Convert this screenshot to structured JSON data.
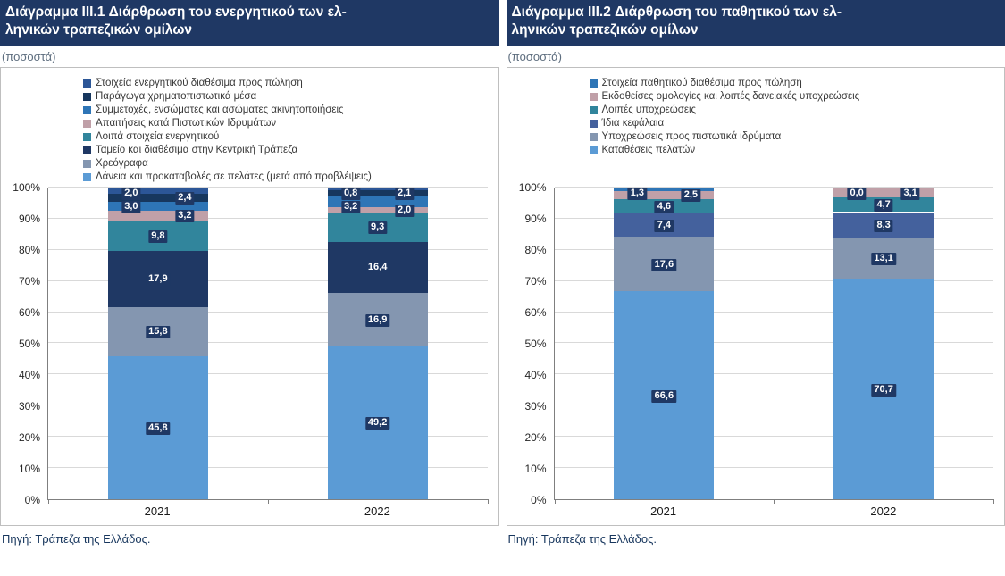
{
  "colors": {
    "title_bar": "#1F3864",
    "value_label_bg": "#1F3864",
    "value_label_text": "#FFFFFF",
    "gridline": "#D9D9D9",
    "axis": "#7F7F7F"
  },
  "chart_data": [
    {
      "type": "bar",
      "stacked": true,
      "title": "Διάγραμμα III.1 Διάρθρωση του ενεργητικού των ελληνικών τραπεζικών ομίλων",
      "title_lines": [
        "Διάγραμμα III.1 Διάρθρωση του ενεργητικού των ελ-",
        "ληνικών τραπεζικών ομίλων"
      ],
      "subtitle": "(ποσοστά)",
      "source": "Πηγή: Τράπεζα της Ελλάδος.",
      "categories": [
        "2021",
        "2022"
      ],
      "ylim": [
        0,
        100
      ],
      "yticks": [
        "0%",
        "10%",
        "20%",
        "30%",
        "40%",
        "50%",
        "60%",
        "70%",
        "80%",
        "90%",
        "100%"
      ],
      "grid": true,
      "legend_position": "top",
      "stack_note": "series listed in legend order, top of stack first",
      "series": [
        {
          "name": "Στοιχεία ενεργητικού διαθέσιμα προς πώληση",
          "color": "#2C5697",
          "values": [
            2.0,
            0.8
          ]
        },
        {
          "name": "Παράγωγα χρηματοπιστωτικά μέσα",
          "color": "#17375E",
          "values": [
            2.4,
            2.1
          ]
        },
        {
          "name": "Συμμετοχές, ενσώματες και ασώματες ακινητοποιήσεις",
          "color": "#2E75B6",
          "values": [
            3.0,
            3.2
          ]
        },
        {
          "name": "Απαιτήσεις κατά Πιστωτικών Ιδρυμάτων",
          "color": "#C0A0A8",
          "values": [
            3.2,
            2.0
          ]
        },
        {
          "name": "Λοιπά στοιχεία ενεργητικού",
          "color": "#31859C",
          "values": [
            9.8,
            9.3
          ]
        },
        {
          "name": "Ταμείο και διαθέσιμα στην Κεντρική Τράπεζα",
          "color": "#1F3864",
          "values": [
            17.9,
            16.4
          ]
        },
        {
          "name": "Χρεόγραφα",
          "color": "#8496B0",
          "values": [
            15.8,
            16.9
          ]
        },
        {
          "name": "Δάνεια και προκαταβολές σε πελάτες (μετά από προβλέψεις)",
          "color": "#5B9BD5",
          "values": [
            45.8,
            49.2
          ]
        }
      ]
    },
    {
      "type": "bar",
      "stacked": true,
      "title": "Διάγραμμα III.2 Διάρθρωση του παθητικού των ελληνικών τραπεζικών ομίλων",
      "title_lines": [
        "Διάγραμμα III.2 Διάρθρωση του παθητικού των ελ-",
        "ληνικών τραπεζικών ομίλων"
      ],
      "subtitle": "(ποσοστά)",
      "source": "Πηγή: Τράπεζα της Ελλάδος.",
      "categories": [
        "2021",
        "2022"
      ],
      "ylim": [
        0,
        100
      ],
      "yticks": [
        "0%",
        "10%",
        "20%",
        "30%",
        "40%",
        "50%",
        "60%",
        "70%",
        "80%",
        "90%",
        "100%"
      ],
      "grid": true,
      "legend_position": "top",
      "stack_note": "series listed in legend order, top of stack first",
      "series": [
        {
          "name": "Στοιχεία παθητικού διαθέσιμα προς πώληση",
          "color": "#2E75B6",
          "values": [
            1.3,
            0.0
          ]
        },
        {
          "name": "Εκδοθείσες ομολογίες και λοιπές δανειακές υποχρεώσεις",
          "color": "#C0A0A8",
          "values": [
            2.5,
            3.1
          ]
        },
        {
          "name": "Λοιπές υποχρεώσεις",
          "color": "#31859C",
          "values": [
            4.6,
            4.7
          ]
        },
        {
          "name": "Ίδια κεφάλαια",
          "color": "#44619D",
          "values": [
            7.4,
            8.3
          ]
        },
        {
          "name": "Υποχρεώσεις προς πιστωτικά ιδρύματα",
          "color": "#8496B0",
          "values": [
            17.6,
            13.1
          ]
        },
        {
          "name": "Καταθέσεις πελατών",
          "color": "#5B9BD5",
          "values": [
            66.6,
            70.7
          ]
        }
      ]
    }
  ]
}
